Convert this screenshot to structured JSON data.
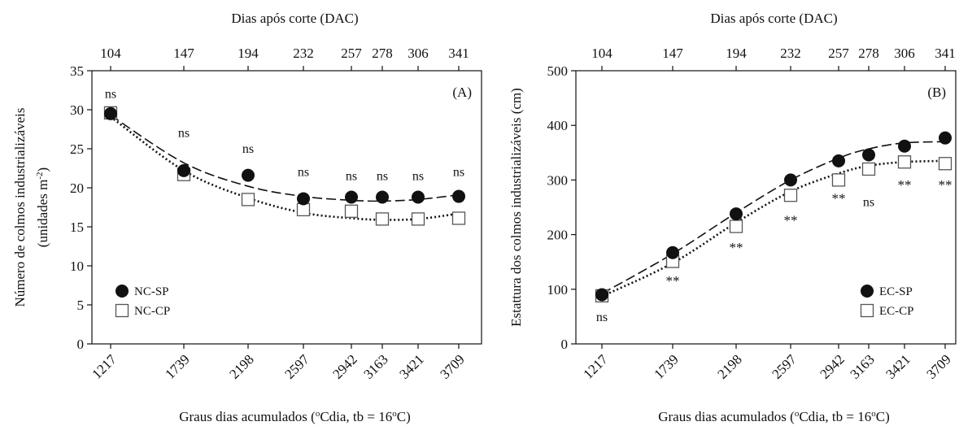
{
  "chart_data": [
    {
      "type": "scatter",
      "panel_label": "(A)",
      "ylabel": "Número de colmos industrializáveis",
      "ylabel2": "(unidades m",
      "ylabel2_sup": "-2",
      "ylabel2_end": ")",
      "xlabel": "Graus dias acumulados (",
      "xlabel_sup1": "o",
      "xlabel_mid": "Cdia, tb = 16",
      "xlabel_sup2": "o",
      "xlabel_end": "C)",
      "top_xlabel": "Dias após corte (DAC)",
      "x": [
        1217,
        1739,
        2198,
        2597,
        2942,
        3163,
        3421,
        3709
      ],
      "x_tick_labels": [
        "1217",
        "1739",
        "2198",
        "2597",
        "2942",
        "3163",
        "3421",
        "3709"
      ],
      "top_tick_labels": [
        "104",
        "147",
        "194",
        "232",
        "257",
        "278",
        "306",
        "341"
      ],
      "ylim": [
        0,
        35
      ],
      "yticks": [
        0,
        5,
        10,
        15,
        20,
        25,
        30,
        35
      ],
      "series": [
        {
          "name": "NC-SP",
          "marker": "filled-circle",
          "line": "dashed",
          "values": [
            29.5,
            22.2,
            21.6,
            18.6,
            18.8,
            18.8,
            18.8,
            18.9
          ],
          "fit": [
            29.3,
            23.2,
            20.2,
            18.9,
            18.4,
            18.3,
            18.5,
            19.1
          ]
        },
        {
          "name": "NC-CP",
          "marker": "open-square",
          "line": "dotted",
          "values": [
            29.6,
            21.7,
            18.5,
            17.2,
            17.0,
            16.0,
            16.0,
            16.1
          ],
          "fit": [
            29.1,
            22.2,
            18.7,
            16.8,
            16.1,
            15.9,
            16.0,
            16.7
          ]
        }
      ],
      "significance": [
        "ns",
        "ns",
        "ns",
        "ns",
        "ns",
        "ns",
        "ns",
        "ns"
      ],
      "significance_y": [
        31.5,
        26.5,
        24.5,
        21.5,
        21.0,
        21.0,
        21.0,
        21.5
      ],
      "legend": "bottom-left"
    },
    {
      "type": "scatter",
      "panel_label": "(B)",
      "ylabel": "Estattura dos colmos industrializáveis (cm)",
      "xlabel": "Graus dias acumulados (",
      "xlabel_sup1": "o",
      "xlabel_mid": "Cdia, tb = 16",
      "xlabel_sup2": "o",
      "xlabel_end": "C)",
      "top_xlabel": "Dias após corte (DAC)",
      "x": [
        1217,
        1739,
        2198,
        2597,
        2942,
        3163,
        3421,
        3709
      ],
      "x_tick_labels": [
        "1217",
        "1739",
        "2198",
        "2597",
        "2942",
        "3163",
        "3421",
        "3709"
      ],
      "top_tick_labels": [
        "104",
        "147",
        "194",
        "232",
        "257",
        "278",
        "306",
        "341"
      ],
      "ylim": [
        0,
        500
      ],
      "yticks": [
        0,
        100,
        200,
        300,
        400,
        500
      ],
      "series": [
        {
          "name": "EC-SP",
          "marker": "filled-circle",
          "line": "dashed",
          "values": [
            90,
            167,
            238,
            300,
            335,
            346,
            362,
            377
          ],
          "fit": [
            92,
            165,
            240,
            300,
            340,
            357,
            368,
            370
          ]
        },
        {
          "name": "EC-CP",
          "marker": "open-square",
          "line": "dotted",
          "values": [
            88,
            151,
            215,
            272,
            300,
            320,
            333,
            330
          ],
          "fit": [
            87,
            148,
            222,
            279,
            312,
            326,
            333,
            335
          ]
        }
      ],
      "significance": [
        "ns",
        "**",
        "**",
        "**",
        "**",
        "ns",
        "**",
        "**"
      ],
      "significance_y": [
        42,
        107,
        168,
        218,
        258,
        252,
        283,
        283
      ],
      "legend": "bottom-right"
    }
  ]
}
